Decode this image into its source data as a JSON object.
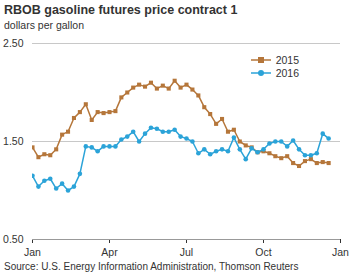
{
  "chart_data": {
    "type": "line",
    "title": "RBOB gasoline futures price contract 1",
    "subtitle": "dollars per gallon",
    "source": "Source: U.S. Energy Information Administration, Thomson Reuters",
    "x": [
      0,
      1,
      2,
      3,
      4,
      5,
      6,
      7,
      8,
      9,
      10,
      11,
      12,
      13,
      14,
      15,
      16,
      17,
      18,
      19,
      20,
      21,
      22,
      23,
      24,
      25,
      26,
      27,
      28,
      29,
      30,
      31,
      32,
      33,
      34,
      35,
      36,
      37,
      38,
      39,
      40,
      41,
      42,
      43,
      44,
      45,
      46,
      47,
      48,
      49,
      50
    ],
    "series": [
      {
        "name": "2015",
        "color": "#b5763a",
        "marker": "square",
        "values": [
          1.44,
          1.34,
          1.37,
          1.36,
          1.42,
          1.57,
          1.6,
          1.74,
          1.8,
          1.88,
          1.72,
          1.8,
          1.79,
          1.8,
          1.81,
          1.95,
          2.0,
          2.05,
          2.08,
          2.06,
          2.1,
          2.04,
          2.07,
          2.04,
          2.12,
          2.05,
          2.08,
          2.03,
          1.97,
          1.85,
          1.78,
          1.68,
          1.73,
          1.6,
          1.62,
          1.5,
          1.46,
          1.44,
          1.39,
          1.4,
          1.38,
          1.35,
          1.33,
          1.35,
          1.28,
          1.25,
          1.3,
          1.32,
          1.28,
          1.29,
          1.28
        ]
      },
      {
        "name": "2016",
        "color": "#2ba3d8",
        "marker": "circle",
        "values": [
          1.15,
          1.04,
          1.1,
          1.12,
          1.02,
          1.07,
          1.0,
          1.04,
          1.17,
          1.45,
          1.44,
          1.4,
          1.45,
          1.45,
          1.45,
          1.52,
          1.55,
          1.6,
          1.5,
          1.58,
          1.64,
          1.63,
          1.6,
          1.6,
          1.62,
          1.55,
          1.53,
          1.5,
          1.38,
          1.42,
          1.37,
          1.4,
          1.42,
          1.4,
          1.54,
          1.42,
          1.32,
          1.43,
          1.39,
          1.42,
          1.48,
          1.5,
          1.5,
          1.45,
          1.51,
          1.42,
          1.36,
          1.36,
          1.38,
          1.58,
          1.53
        ]
      }
    ],
    "xlim": [
      0,
      52
    ],
    "xticks": [
      {
        "value": 0,
        "label": "Jan"
      },
      {
        "value": 13,
        "label": "Apr"
      },
      {
        "value": 26,
        "label": "Jul"
      },
      {
        "value": 39,
        "label": "Oct"
      },
      {
        "value": 52,
        "label": "Jan"
      }
    ],
    "ylim": [
      0.5,
      2.5
    ],
    "yticks": [
      {
        "value": 0.5,
        "label": "0.50"
      },
      {
        "value": 1.5,
        "label": "1.50"
      },
      {
        "value": 2.5,
        "label": "2.50"
      }
    ],
    "grid": true,
    "legend": "top right"
  }
}
